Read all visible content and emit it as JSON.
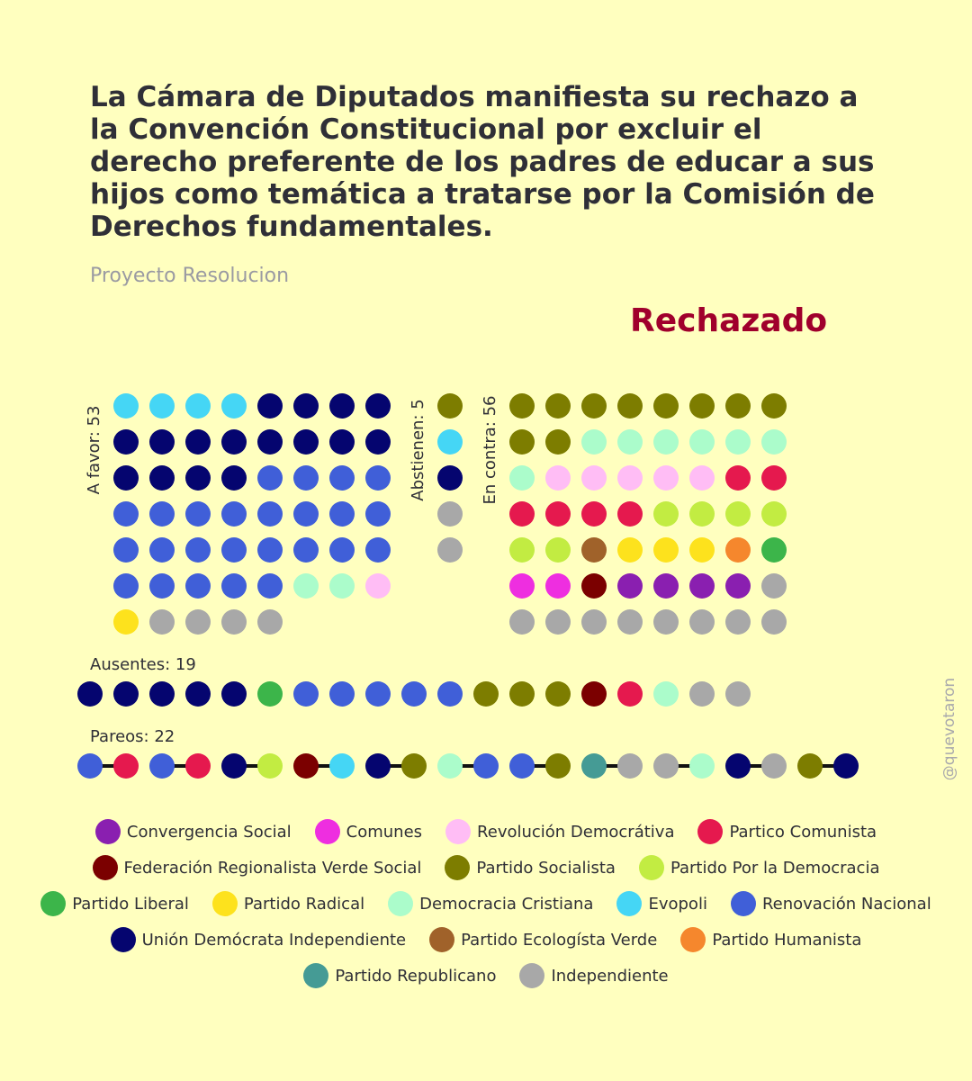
{
  "title": "La Cámara de Diputados manifiesta su rechazo a la Convención Constitucional por excluir el derecho preferente de los padres de educar a sus hijos como temática a tratarse por la Comisión de Derechos fundamentales.",
  "subtitle": "Proyecto Resolucion",
  "result": "Rechazado",
  "credit": "@quevotaron",
  "parties": {
    "CS": {
      "name": "Convergencia Social",
      "color": "#8a1fb0"
    },
    "COM": {
      "name": "Comunes",
      "color": "#ee2ee0"
    },
    "RD": {
      "name": "Revolución Democrátiva",
      "color": "#ffbdf5"
    },
    "PC": {
      "name": "Partico Comunista",
      "color": "#e5194e"
    },
    "FRVS": {
      "name": "Federación Regionalista Verde Social",
      "color": "#7b0000"
    },
    "PS": {
      "name": "Partido Socialista",
      "color": "#7d7d00"
    },
    "PPD": {
      "name": "Partido Por la Democracia",
      "color": "#c2ec42"
    },
    "PL": {
      "name": "Partido Liberal",
      "color": "#3cb54a"
    },
    "PR": {
      "name": "Partido Radical",
      "color": "#fde21d"
    },
    "DC": {
      "name": "Democracia Cristiana",
      "color": "#abfccb"
    },
    "EVO": {
      "name": "Evopoli",
      "color": "#45d6f5"
    },
    "RN": {
      "name": "Renovación Nacional",
      "color": "#405fd8"
    },
    "UDI": {
      "name": "Unión Demócrata Independiente",
      "color": "#05056f"
    },
    "PEV": {
      "name": "Partido Ecologísta Verde",
      "color": "#a0622a"
    },
    "PH": {
      "name": "Partido Humanista",
      "color": "#f5872d"
    },
    "REP": {
      "name": "Partido Republicano",
      "color": "#459b95"
    },
    "IND": {
      "name": "Independiente",
      "color": "#a8a8a8"
    }
  },
  "legend_order": [
    "CS",
    "COM",
    "RD",
    "PC",
    "FRVS",
    "PS",
    "PPD",
    "PL",
    "PR",
    "DC",
    "EVO",
    "RN",
    "UDI",
    "PEV",
    "PH",
    "REP",
    "IND"
  ],
  "chart_data": {
    "type": "dot-grid",
    "groups": [
      {
        "label": "A favor: 53",
        "count": 53,
        "columns": 8,
        "seats": [
          "EVO",
          "EVO",
          "EVO",
          "EVO",
          "UDI",
          "UDI",
          "UDI",
          "UDI",
          "UDI",
          "UDI",
          "UDI",
          "UDI",
          "UDI",
          "UDI",
          "UDI",
          "UDI",
          "UDI",
          "UDI",
          "UDI",
          "UDI",
          "RN",
          "RN",
          "RN",
          "RN",
          "RN",
          "RN",
          "RN",
          "RN",
          "RN",
          "RN",
          "RN",
          "RN",
          "RN",
          "RN",
          "RN",
          "RN",
          "RN",
          "RN",
          "RN",
          "RN",
          "RN",
          "RN",
          "RN",
          "RN",
          "RN",
          "DC",
          "DC",
          "RD",
          "PR",
          "IND",
          "IND",
          "IND",
          "IND"
        ]
      },
      {
        "label": "Abstienen: 5",
        "count": 5,
        "columns": 1,
        "seats": [
          "PS",
          "EVO",
          "UDI",
          "IND",
          "IND"
        ]
      },
      {
        "label": "En contra: 56",
        "count": 56,
        "columns": 8,
        "seats": [
          "PS",
          "PS",
          "PS",
          "PS",
          "PS",
          "PS",
          "PS",
          "PS",
          "PS",
          "PS",
          "DC",
          "DC",
          "DC",
          "DC",
          "DC",
          "DC",
          "DC",
          "RD",
          "RD",
          "RD",
          "RD",
          "RD",
          "PC",
          "PC",
          "PC",
          "PC",
          "PC",
          "PC",
          "PPD",
          "PPD",
          "PPD",
          "PPD",
          "PPD",
          "PPD",
          "PEV",
          "PR",
          "PR",
          "PR",
          "PH",
          "PL",
          "COM",
          "COM",
          "FRVS",
          "CS",
          "CS",
          "CS",
          "CS",
          "IND",
          "IND",
          "IND",
          "IND",
          "IND",
          "IND",
          "IND",
          "IND",
          "IND"
        ]
      }
    ],
    "absent": {
      "label": "Ausentes: 19",
      "count": 19,
      "seats": [
        "UDI",
        "UDI",
        "UDI",
        "UDI",
        "UDI",
        "PL",
        "RN",
        "RN",
        "RN",
        "RN",
        "RN",
        "PS",
        "PS",
        "PS",
        "FRVS",
        "PC",
        "DC",
        "IND",
        "IND"
      ]
    },
    "pairs": {
      "label": "Pareos: 22",
      "count": 22,
      "pairs": [
        [
          "RN",
          "PC"
        ],
        [
          "RN",
          "PC"
        ],
        [
          "UDI",
          "PPD"
        ],
        [
          "FRVS",
          "EVO"
        ],
        [
          "UDI",
          "PS"
        ],
        [
          "DC",
          "RN"
        ],
        [
          "RN",
          "PS"
        ],
        [
          "REP",
          "IND"
        ],
        [
          "IND",
          "DC"
        ],
        [
          "UDI",
          "IND"
        ],
        [
          "PS",
          "UDI"
        ]
      ]
    }
  }
}
